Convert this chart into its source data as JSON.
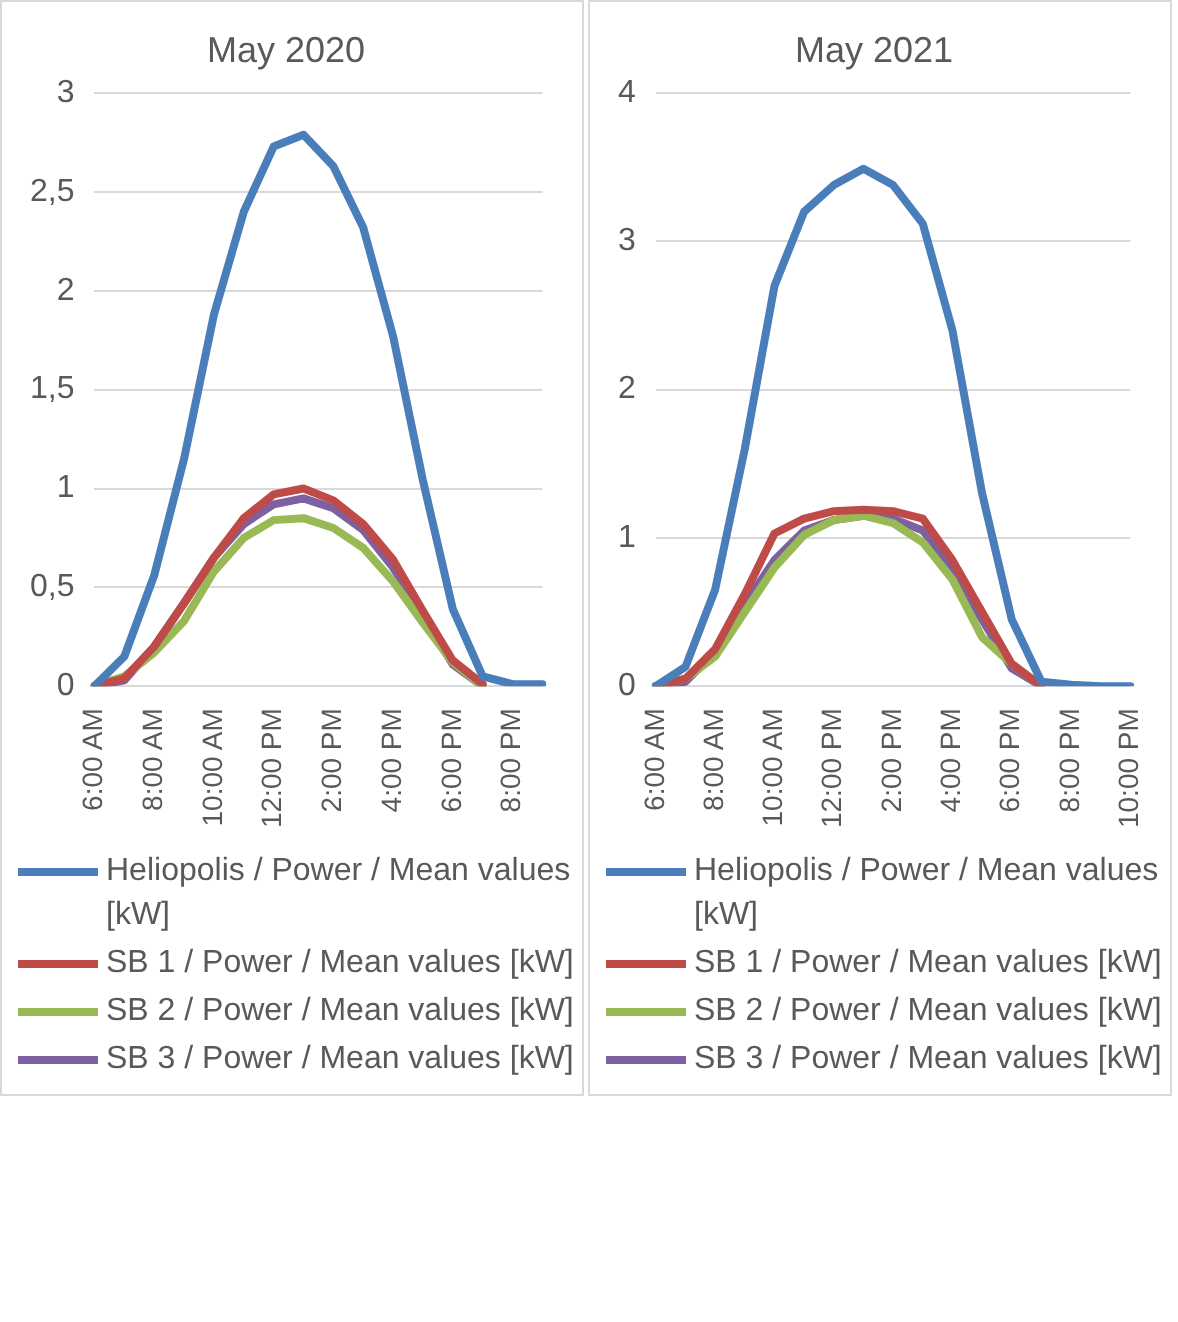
{
  "chart_data": [
    {
      "type": "line",
      "title": "May 2020",
      "categories": [
        "6:00 AM",
        null,
        "8:00 AM",
        null,
        "10:00 AM",
        null,
        "12:00 PM",
        null,
        "2:00 PM",
        null,
        "4:00 PM",
        null,
        "6:00 PM",
        null,
        "8:00 PM",
        null
      ],
      "series": [
        {
          "name": "Heliopolis / Power / Mean values [kW]",
          "color": "#4a7ebb",
          "values": [
            0,
            0.15,
            0.56,
            1.15,
            1.88,
            2.4,
            2.73,
            2.79,
            2.63,
            2.32,
            1.77,
            1.04,
            0.39,
            0.05,
            0.01,
            0.01
          ]
        },
        {
          "name": "SB 1 / Power / Mean values [kW]",
          "color": "#be4b48",
          "values": [
            0,
            0.04,
            0.2,
            0.42,
            0.65,
            0.85,
            0.97,
            1.0,
            0.94,
            0.82,
            0.64,
            0.38,
            0.13,
            0.01,
            null,
            null
          ]
        },
        {
          "name": "SB 2 / Power / Mean values [kW]",
          "color": "#98b954",
          "values": [
            0,
            0.05,
            0.17,
            0.33,
            0.58,
            0.75,
            0.84,
            0.85,
            0.8,
            0.7,
            0.53,
            0.32,
            0.12,
            0,
            null,
            null
          ]
        },
        {
          "name": "SB 3 / Power / Mean values [kW]",
          "color": "#7d60a0",
          "values": [
            0,
            0.03,
            0.2,
            0.42,
            0.65,
            0.82,
            0.92,
            0.95,
            0.9,
            0.79,
            0.6,
            0.36,
            0.11,
            0,
            null,
            null
          ]
        }
      ],
      "ylim": [
        0,
        3
      ],
      "yticks": [
        0,
        {
          "value": 0.5,
          "label": "0,5"
        },
        1,
        {
          "value": 1.5,
          "label": "1,5"
        },
        2,
        {
          "value": 2.5,
          "label": "2,5"
        },
        3
      ],
      "grid": "y",
      "legend": "bottom",
      "marker": "none",
      "line_style": "solid"
    },
    {
      "type": "line",
      "title": "May 2021",
      "categories": [
        "6:00 AM",
        null,
        "8:00 AM",
        null,
        "10:00 AM",
        null,
        "12:00 PM",
        null,
        "2:00 PM",
        null,
        "4:00 PM",
        null,
        "6:00 PM",
        null,
        "8:00 PM",
        null,
        "10:00 PM"
      ],
      "series": [
        {
          "name": "Heliopolis / Power / Mean values [kW]",
          "color": "#4a7ebb",
          "values": [
            0,
            0.13,
            0.65,
            1.6,
            2.7,
            3.2,
            3.38,
            3.49,
            3.38,
            3.12,
            2.4,
            1.3,
            0.45,
            0.03,
            0.01,
            0,
            0
          ]
        },
        {
          "name": "SB 1 / Power / Mean values [kW]",
          "color": "#be4b48",
          "values": [
            0,
            0.05,
            0.25,
            0.62,
            1.03,
            1.13,
            1.18,
            1.19,
            1.18,
            1.13,
            0.85,
            0.5,
            0.15,
            0,
            null,
            null,
            null
          ]
        },
        {
          "name": "SB 2 / Power / Mean values [kW]",
          "color": "#98b954",
          "values": [
            0,
            0.05,
            0.2,
            0.5,
            0.8,
            1.02,
            1.12,
            1.15,
            1.1,
            0.97,
            0.72,
            0.33,
            0.15,
            0,
            null,
            null,
            null
          ]
        },
        {
          "name": "SB 3 / Power / Mean values [kW]",
          "color": "#7d60a0",
          "values": [
            0,
            0.03,
            0.23,
            0.55,
            0.85,
            1.05,
            1.12,
            1.15,
            1.13,
            1.05,
            0.8,
            0.45,
            0.12,
            0,
            null,
            null,
            null
          ]
        }
      ],
      "ylim": [
        0,
        4
      ],
      "yticks": [
        0,
        1,
        2,
        3,
        4
      ],
      "grid": "y",
      "legend": "bottom",
      "marker": "none",
      "line_style": "solid"
    }
  ]
}
